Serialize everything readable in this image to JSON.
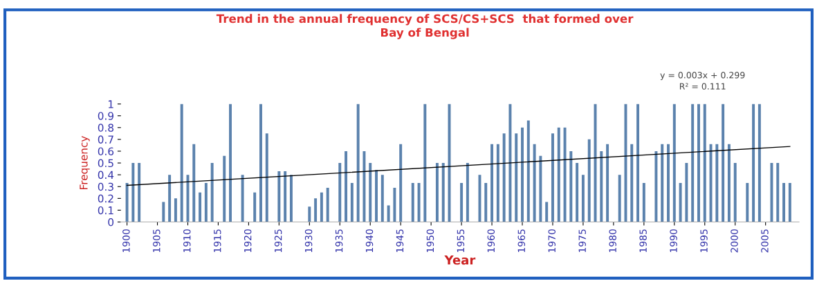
{
  "chart_data": {
    "type": "bar",
    "title": "Trend in the annual frequency of SCS/CS+SCS  that formed over\nBay of Bengal",
    "xlabel": "Year",
    "ylabel": "Frequency",
    "x": [
      1900,
      1901,
      1902,
      1903,
      1904,
      1905,
      1906,
      1907,
      1908,
      1909,
      1910,
      1911,
      1912,
      1913,
      1914,
      1915,
      1916,
      1917,
      1918,
      1919,
      1920,
      1921,
      1922,
      1923,
      1924,
      1925,
      1926,
      1927,
      1928,
      1929,
      1930,
      1931,
      1932,
      1933,
      1934,
      1935,
      1936,
      1937,
      1938,
      1939,
      1940,
      1941,
      1942,
      1943,
      1944,
      1945,
      1946,
      1947,
      1948,
      1949,
      1950,
      1951,
      1952,
      1953,
      1954,
      1955,
      1956,
      1957,
      1958,
      1959,
      1960,
      1961,
      1962,
      1963,
      1964,
      1965,
      1966,
      1967,
      1968,
      1969,
      1970,
      1971,
      1972,
      1973,
      1974,
      1975,
      1976,
      1977,
      1978,
      1979,
      1980,
      1981,
      1982,
      1983,
      1984,
      1985,
      1986,
      1987,
      1988,
      1989,
      1990,
      1991,
      1992,
      1993,
      1994,
      1995,
      1996,
      1997,
      1998,
      1999,
      2000,
      2001,
      2002,
      2003,
      2004,
      2005,
      2006,
      2007,
      2008,
      2009
    ],
    "series": [
      {
        "color": "#5b82ad",
        "values": [
          0.33,
          0.5,
          0.5,
          0,
          0,
          0,
          0.17,
          0.4,
          0.2,
          1,
          0.4,
          0.66,
          0.25,
          0.33,
          0.5,
          0,
          0.56,
          1,
          0,
          0.4,
          0,
          0.25,
          1,
          0.75,
          0,
          0.43,
          0.43,
          0.4,
          0,
          0,
          0.13,
          0.2,
          0.25,
          0.29,
          0,
          0.5,
          0.6,
          0.33,
          1,
          0.6,
          0.5,
          0.44,
          0.4,
          0.14,
          0.29,
          0.66,
          0,
          0.33,
          0.33,
          1,
          0,
          0.5,
          0.5,
          1,
          0,
          0.33,
          0.5,
          0,
          0.4,
          0.33,
          0.66,
          0.66,
          0.75,
          1,
          0.75,
          0.8,
          0.86,
          0.66,
          0.56,
          0.17,
          0.75,
          0.8,
          0.8,
          0.6,
          0.5,
          0.4,
          0.7,
          1,
          0.6,
          0.66,
          0,
          0.4,
          1,
          0.66,
          1,
          0.33,
          0,
          0.6,
          0.66,
          0.66,
          1,
          0.33,
          0.5,
          1,
          1,
          1,
          0.66,
          0.66,
          1,
          0.66,
          0.5,
          0,
          0.33,
          1,
          1,
          0,
          0.5,
          0.5,
          0.33,
          0.33
        ]
      },
      {
        "type": "line",
        "color": "#000000",
        "x": [
          1900,
          2009
        ],
        "values": [
          0.31,
          0.64
        ]
      }
    ],
    "xlim": [
      1899,
      2010.5
    ],
    "xticks": [
      1900,
      1905,
      1910,
      1915,
      1920,
      1925,
      1930,
      1935,
      1940,
      1945,
      1950,
      1955,
      1960,
      1965,
      1970,
      1975,
      1980,
      1985,
      1990,
      1995,
      2000,
      2005
    ],
    "ylim": [
      0,
      1
    ],
    "yticks": [
      0,
      {
        "value": 0.1,
        "label": "0.1"
      },
      {
        "value": 0.2,
        "label": "0.2"
      },
      {
        "value": 0.3,
        "label": "0.3"
      },
      {
        "value": 0.4,
        "label": "0.4"
      },
      {
        "value": 0.5,
        "label": "0.5"
      },
      {
        "value": 0.6,
        "label": "0.6"
      },
      {
        "value": 0.7,
        "label": "0.7"
      },
      {
        "value": 0.8,
        "label": "0.8"
      },
      {
        "value": 0.9,
        "label": "0.9"
      },
      1
    ],
    "annotations": [
      "y = 0.003x + 0.299",
      "R² = 0.111"
    ],
    "grid": false,
    "legend": false
  }
}
